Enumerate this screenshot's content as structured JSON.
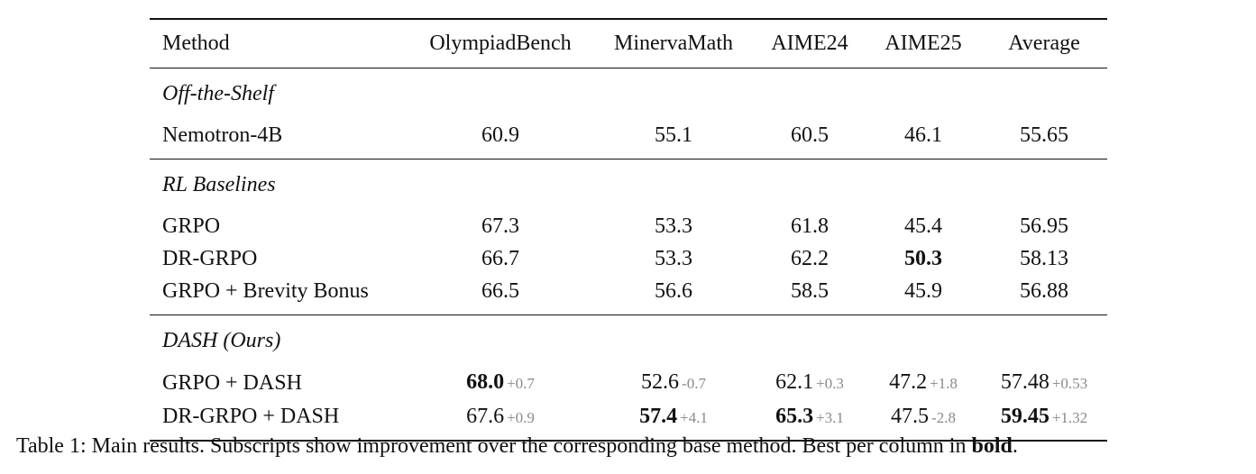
{
  "table": {
    "headers": [
      "Method",
      "OlympiadBench",
      "MinervaMath",
      "AIME24",
      "AIME25",
      "Average"
    ],
    "groups": [
      {
        "title": "Off-the-Shelf",
        "rows": [
          {
            "method": "Nemotron-4B",
            "cells": [
              {
                "value": "60.9",
                "delta": "",
                "bold": false
              },
              {
                "value": "55.1",
                "delta": "",
                "bold": false
              },
              {
                "value": "60.5",
                "delta": "",
                "bold": false
              },
              {
                "value": "46.1",
                "delta": "",
                "bold": false
              },
              {
                "value": "55.65",
                "delta": "",
                "bold": false
              }
            ]
          }
        ]
      },
      {
        "title": "RL Baselines",
        "rows": [
          {
            "method": "GRPO",
            "cells": [
              {
                "value": "67.3",
                "delta": "",
                "bold": false
              },
              {
                "value": "53.3",
                "delta": "",
                "bold": false
              },
              {
                "value": "61.8",
                "delta": "",
                "bold": false
              },
              {
                "value": "45.4",
                "delta": "",
                "bold": false
              },
              {
                "value": "56.95",
                "delta": "",
                "bold": false
              }
            ]
          },
          {
            "method": "DR-GRPO",
            "cells": [
              {
                "value": "66.7",
                "delta": "",
                "bold": false
              },
              {
                "value": "53.3",
                "delta": "",
                "bold": false
              },
              {
                "value": "62.2",
                "delta": "",
                "bold": false
              },
              {
                "value": "50.3",
                "delta": "",
                "bold": true
              },
              {
                "value": "58.13",
                "delta": "",
                "bold": false
              }
            ]
          },
          {
            "method": "GRPO + Brevity Bonus",
            "cells": [
              {
                "value": "66.5",
                "delta": "",
                "bold": false
              },
              {
                "value": "56.6",
                "delta": "",
                "bold": false
              },
              {
                "value": "58.5",
                "delta": "",
                "bold": false
              },
              {
                "value": "45.9",
                "delta": "",
                "bold": false
              },
              {
                "value": "56.88",
                "delta": "",
                "bold": false
              }
            ]
          }
        ]
      },
      {
        "title": "DASH (Ours)",
        "rows": [
          {
            "method": "GRPO + DASH",
            "cells": [
              {
                "value": "68.0",
                "delta": "+0.7",
                "bold": true
              },
              {
                "value": "52.6",
                "delta": "-0.7",
                "bold": false
              },
              {
                "value": "62.1",
                "delta": "+0.3",
                "bold": false
              },
              {
                "value": "47.2",
                "delta": "+1.8",
                "bold": false
              },
              {
                "value": "57.48",
                "delta": "+0.53",
                "bold": false
              }
            ]
          },
          {
            "method": "DR-GRPO + DASH",
            "cells": [
              {
                "value": "67.6",
                "delta": "+0.9",
                "bold": false
              },
              {
                "value": "57.4",
                "delta": "+4.1",
                "bold": true
              },
              {
                "value": "65.3",
                "delta": "+3.1",
                "bold": true
              },
              {
                "value": "47.5",
                "delta": "-2.8",
                "bold": false
              },
              {
                "value": "59.45",
                "delta": "+1.32",
                "bold": true
              }
            ]
          }
        ]
      }
    ]
  },
  "caption": {
    "prefix": "Table 1: Main results. Subscripts show improvement over the corresponding base method. Best per column in ",
    "bold_word": "bold",
    "suffix": "."
  }
}
